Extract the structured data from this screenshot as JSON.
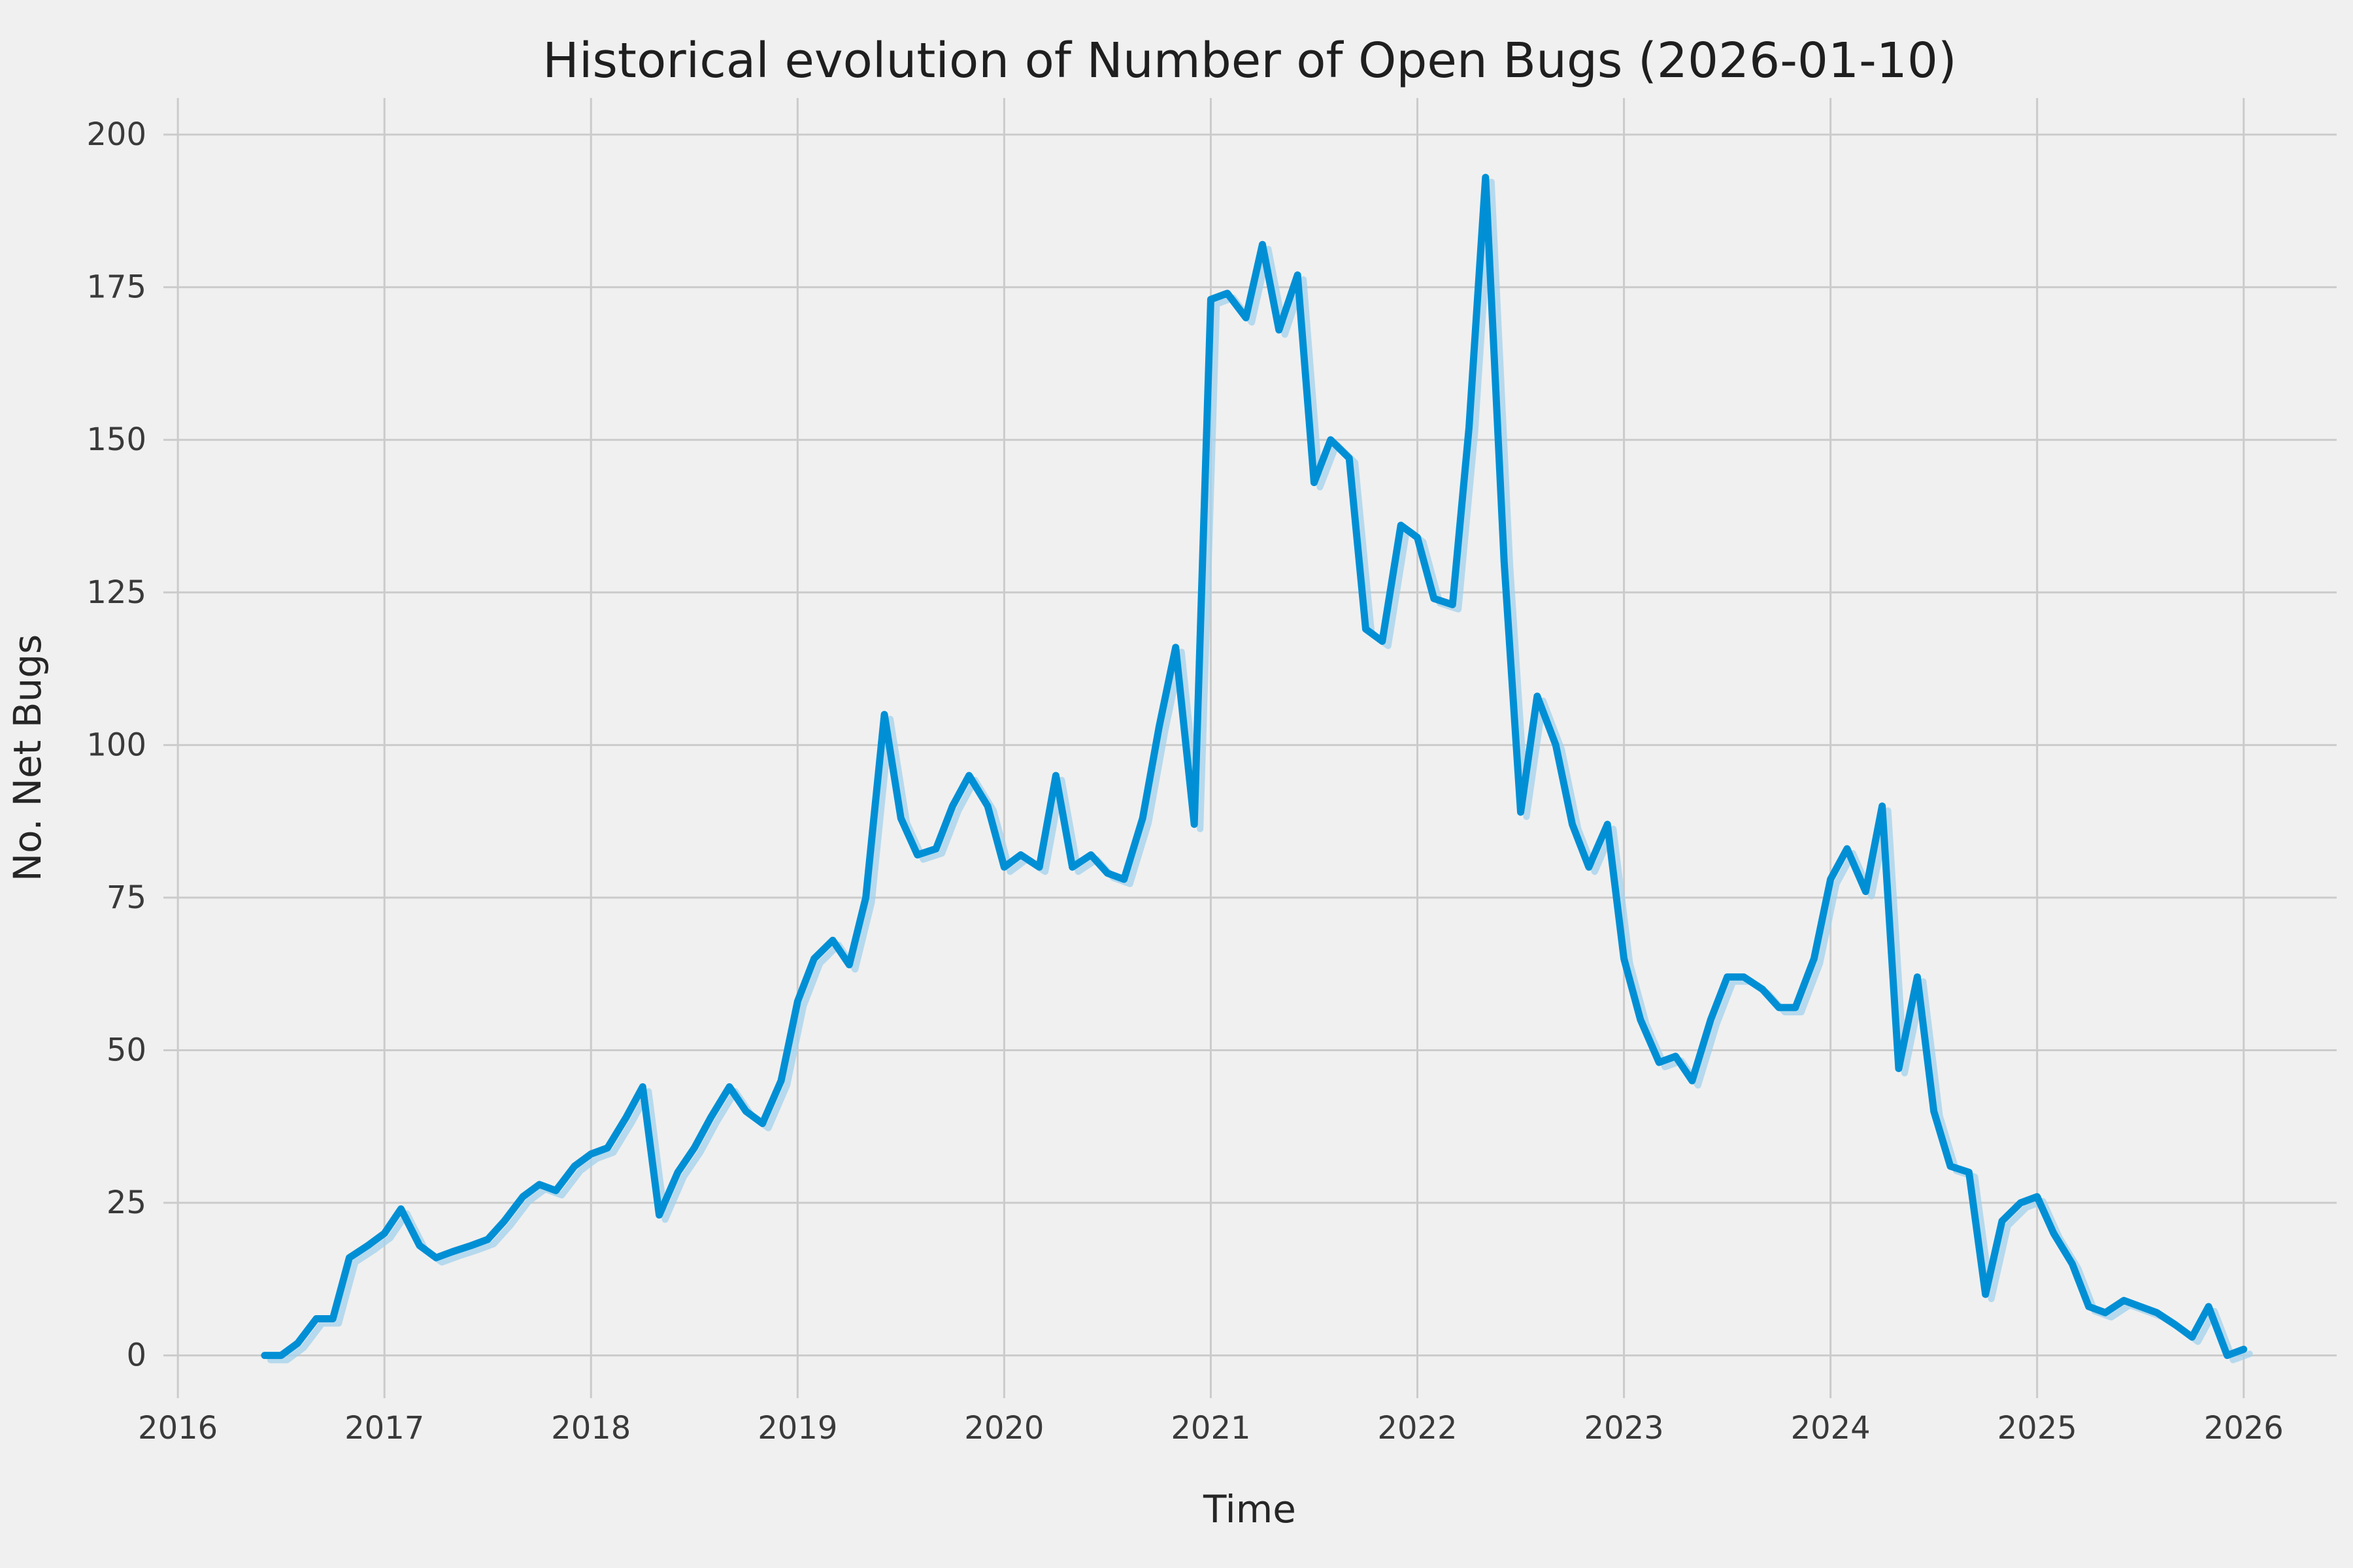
{
  "chart_data": {
    "type": "line",
    "title": "Historical evolution of Number of Open Bugs (2026-01-10)",
    "xlabel": "Time",
    "ylabel": "No. Net Bugs",
    "xlim": [
      2015.93,
      2026.45
    ],
    "ylim": [
      -7,
      206
    ],
    "x_ticks": [
      2016,
      2017,
      2018,
      2019,
      2020,
      2021,
      2022,
      2023,
      2024,
      2025,
      2026
    ],
    "y_ticks": [
      0,
      25,
      50,
      75,
      100,
      125,
      150,
      175,
      200
    ],
    "grid": true,
    "legend": false,
    "colors": {
      "background": "#f0f0f0",
      "plot_background": "#f0f0f0",
      "grid": "#cbcbcb",
      "line": "#008fd5",
      "ghost_line": "#a3d2ec",
      "title_text": "#1f1f1f",
      "axis_label_text": "#262626",
      "tick_text": "#3a3a3a"
    },
    "series": [
      {
        "name": "open-bugs",
        "points": [
          [
            2016.42,
            0
          ],
          [
            2016.5,
            0
          ],
          [
            2016.58,
            2
          ],
          [
            2016.67,
            6
          ],
          [
            2016.75,
            6
          ],
          [
            2016.83,
            16
          ],
          [
            2016.92,
            18
          ],
          [
            2017,
            20
          ],
          [
            2017.08,
            24
          ],
          [
            2017.17,
            18
          ],
          [
            2017.25,
            16
          ],
          [
            2017.33,
            17
          ],
          [
            2017.42,
            18
          ],
          [
            2017.5,
            19
          ],
          [
            2017.58,
            22
          ],
          [
            2017.67,
            26
          ],
          [
            2017.75,
            28
          ],
          [
            2017.83,
            27
          ],
          [
            2017.92,
            31
          ],
          [
            2018,
            33
          ],
          [
            2018.08,
            34
          ],
          [
            2018.17,
            39
          ],
          [
            2018.25,
            44
          ],
          [
            2018.33,
            23
          ],
          [
            2018.42,
            30
          ],
          [
            2018.5,
            34
          ],
          [
            2018.58,
            39
          ],
          [
            2018.67,
            44
          ],
          [
            2018.75,
            40
          ],
          [
            2018.83,
            38
          ],
          [
            2018.92,
            45
          ],
          [
            2019,
            58
          ],
          [
            2019.08,
            65
          ],
          [
            2019.17,
            68
          ],
          [
            2019.25,
            64
          ],
          [
            2019.33,
            75
          ],
          [
            2019.42,
            105
          ],
          [
            2019.5,
            88
          ],
          [
            2019.58,
            82
          ],
          [
            2019.67,
            83
          ],
          [
            2019.75,
            90
          ],
          [
            2019.83,
            95
          ],
          [
            2019.92,
            90
          ],
          [
            2020,
            80
          ],
          [
            2020.08,
            82
          ],
          [
            2020.17,
            80
          ],
          [
            2020.25,
            95
          ],
          [
            2020.33,
            80
          ],
          [
            2020.42,
            82
          ],
          [
            2020.5,
            79
          ],
          [
            2020.58,
            78
          ],
          [
            2020.67,
            88
          ],
          [
            2020.75,
            103
          ],
          [
            2020.83,
            116
          ],
          [
            2020.92,
            87
          ],
          [
            2021,
            173
          ],
          [
            2021.08,
            174
          ],
          [
            2021.17,
            170
          ],
          [
            2021.25,
            182
          ],
          [
            2021.33,
            168
          ],
          [
            2021.42,
            177
          ],
          [
            2021.5,
            143
          ],
          [
            2021.58,
            150
          ],
          [
            2021.67,
            147
          ],
          [
            2021.75,
            119
          ],
          [
            2021.83,
            117
          ],
          [
            2021.92,
            136
          ],
          [
            2022,
            134
          ],
          [
            2022.08,
            124
          ],
          [
            2022.17,
            123
          ],
          [
            2022.25,
            152
          ],
          [
            2022.33,
            193
          ],
          [
            2022.42,
            130
          ],
          [
            2022.5,
            89
          ],
          [
            2022.58,
            108
          ],
          [
            2022.67,
            100
          ],
          [
            2022.75,
            87
          ],
          [
            2022.83,
            80
          ],
          [
            2022.92,
            87
          ],
          [
            2023,
            65
          ],
          [
            2023.08,
            55
          ],
          [
            2023.17,
            48
          ],
          [
            2023.25,
            49
          ],
          [
            2023.33,
            45
          ],
          [
            2023.42,
            55
          ],
          [
            2023.5,
            62
          ],
          [
            2023.58,
            62
          ],
          [
            2023.67,
            60
          ],
          [
            2023.75,
            57
          ],
          [
            2023.83,
            57
          ],
          [
            2023.92,
            65
          ],
          [
            2024,
            78
          ],
          [
            2024.08,
            83
          ],
          [
            2024.17,
            76
          ],
          [
            2024.25,
            90
          ],
          [
            2024.33,
            47
          ],
          [
            2024.42,
            62
          ],
          [
            2024.5,
            40
          ],
          [
            2024.58,
            31
          ],
          [
            2024.67,
            30
          ],
          [
            2024.75,
            10
          ],
          [
            2024.83,
            22
          ],
          [
            2024.92,
            25
          ],
          [
            2025,
            26
          ],
          [
            2025.08,
            20
          ],
          [
            2025.17,
            15
          ],
          [
            2025.25,
            8
          ],
          [
            2025.33,
            7
          ],
          [
            2025.42,
            9
          ],
          [
            2025.5,
            8
          ],
          [
            2025.58,
            7
          ],
          [
            2025.67,
            5
          ],
          [
            2025.75,
            3
          ],
          [
            2025.83,
            8
          ],
          [
            2025.92,
            0
          ],
          [
            2026,
            1
          ]
        ]
      }
    ]
  }
}
